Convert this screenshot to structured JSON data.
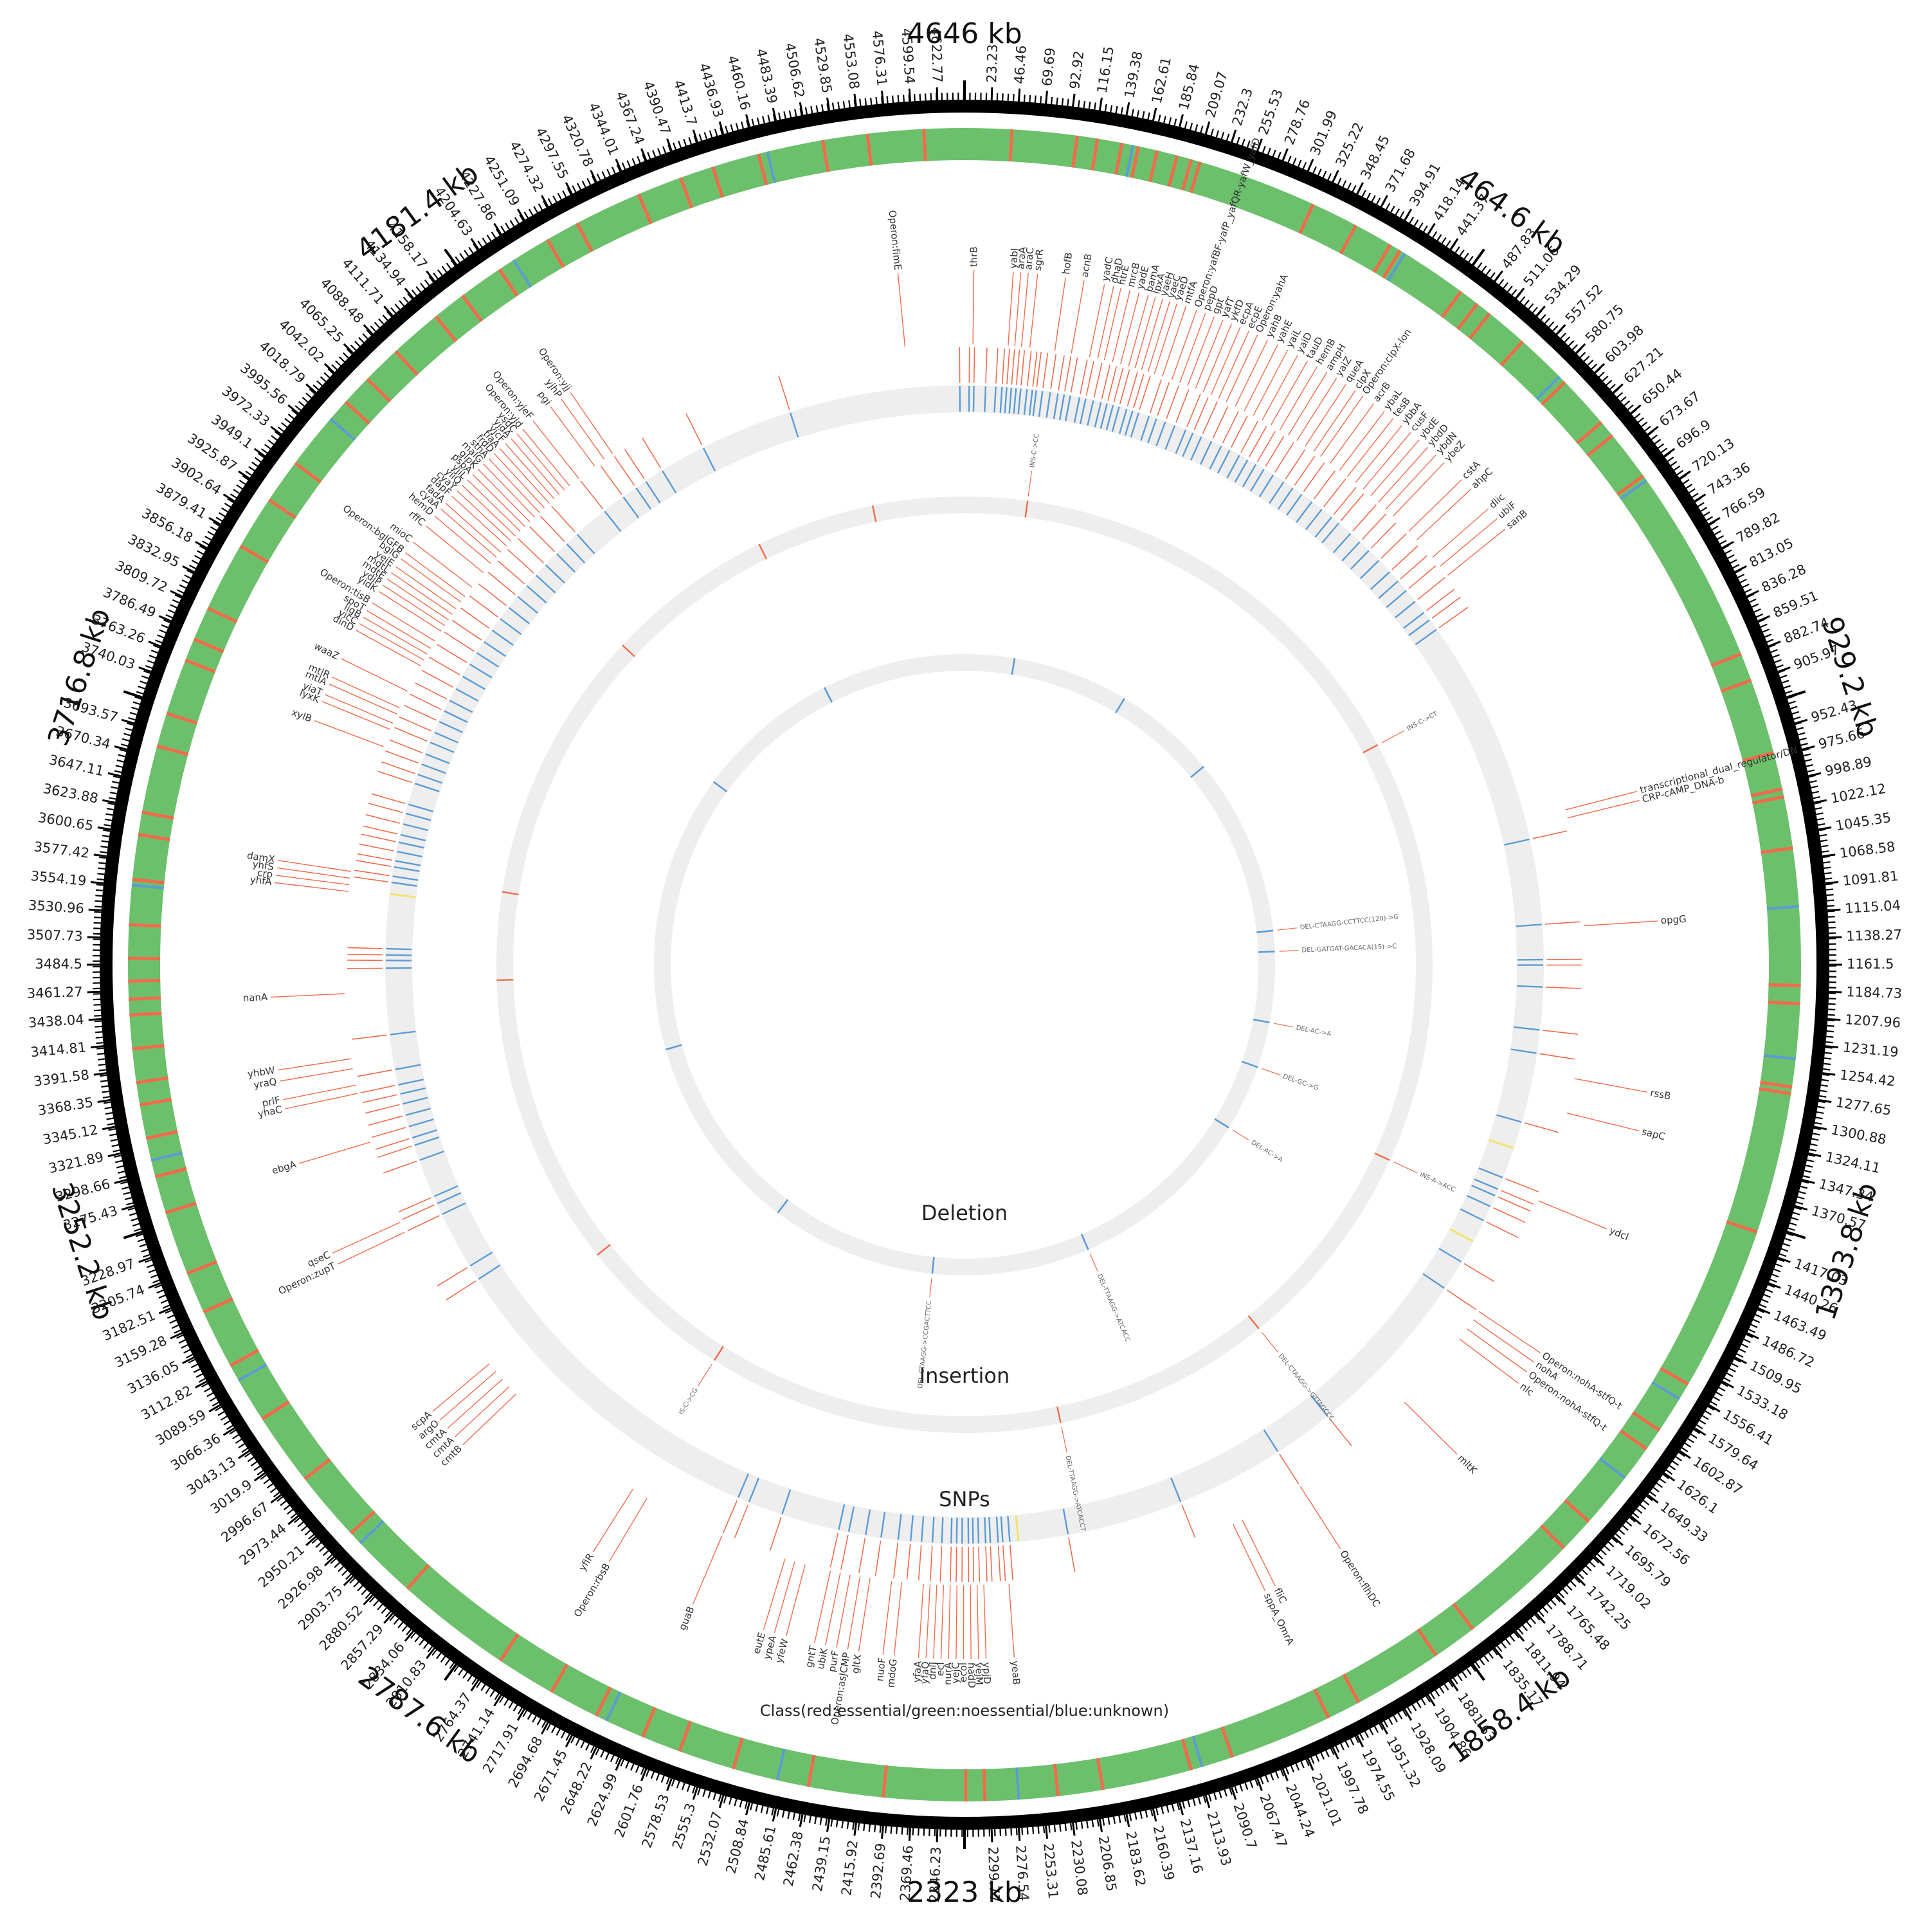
{
  "genome": {
    "length_kb": 4646
  },
  "colors": {
    "essential": "#f26b4a",
    "nonessential": "#6cc06c",
    "unknown": "#5b9bd5",
    "track_bg": "#eeeeee",
    "ruler": "#000000",
    "snp_tick": "#8fb3d6",
    "frameshift": "#f2e46b",
    "annotation_line": "#f26b4a",
    "text": "#333333"
  },
  "major_ticks": [
    "4646 kb",
    "464.6 kb",
    "929.2 kb",
    "1393.8 kb",
    "1858.4 kb",
    "2323 kb",
    "2787.6 kb",
    "3252.2 kb",
    "3716.8 kb",
    "4181.4 kb"
  ],
  "minor_ticks": [
    "23.23",
    "46.46",
    "69.69",
    "92.92",
    "116.15",
    "139.38",
    "162.61",
    "185.84",
    "209.07",
    "232.3",
    "255.53",
    "278.76",
    "301.99",
    "325.22",
    "348.45",
    "371.68",
    "394.91",
    "418.14",
    "441.37",
    "487.83",
    "511.06",
    "534.29",
    "557.52",
    "580.75",
    "603.98",
    "627.21",
    "650.44",
    "673.67",
    "696.9",
    "720.13",
    "743.36",
    "766.59",
    "789.82",
    "813.05",
    "836.28",
    "859.51",
    "882.74",
    "905.97",
    "952.43",
    "975.66",
    "998.89",
    "1022.12",
    "1045.35",
    "1068.58",
    "1091.81",
    "1115.04",
    "1138.27",
    "1161.5",
    "1184.73",
    "1207.96",
    "1231.19",
    "1254.42",
    "1277.65",
    "1300.88",
    "1324.11",
    "1347.34",
    "1370.57",
    "1417.03",
    "1440.26",
    "1463.49",
    "1486.72",
    "1509.95",
    "1533.18",
    "1556.41",
    "1579.64",
    "1602.87",
    "1626.1",
    "1649.33",
    "1672.56",
    "1695.79",
    "1719.02",
    "1742.25",
    "1765.48",
    "1788.71",
    "1811.94",
    "1835.17",
    "1881.63",
    "1904.86",
    "1928.09",
    "1951.32",
    "1974.55",
    "1997.78",
    "2021.01",
    "2044.24",
    "2067.47",
    "2090.7",
    "2113.93",
    "2137.16",
    "2160.39",
    "2183.62",
    "2206.85",
    "2230.08",
    "2253.31",
    "2276.54",
    "2299.77",
    "2346.23",
    "2369.46",
    "2392.69",
    "2415.92",
    "2439.15",
    "2462.38",
    "2485.61",
    "2508.84",
    "2532.07",
    "2555.3",
    "2578.53",
    "2601.76",
    "2624.99",
    "2648.22",
    "2671.45",
    "2694.68",
    "2717.91",
    "2741.14",
    "2764.37",
    "2810.83",
    "2834.06",
    "2857.29",
    "2880.52",
    "2903.75",
    "2926.98",
    "2950.21",
    "2973.44",
    "2996.67",
    "3019.9",
    "3043.13",
    "3066.36",
    "3089.59",
    "3112.82",
    "3136.05",
    "3159.28",
    "3182.51",
    "3205.74",
    "3228.97",
    "3275.43",
    "3298.66",
    "3321.89",
    "3345.12",
    "3368.35",
    "3391.58",
    "3414.81",
    "3438.04",
    "3461.27",
    "3484.5",
    "3507.73",
    "3530.96",
    "3554.19",
    "3577.42",
    "3600.65",
    "3623.88",
    "3647.11",
    "3670.34",
    "3693.57",
    "3740.03",
    "3763.26",
    "3786.49",
    "3809.72",
    "3832.95",
    "3856.18",
    "3879.41",
    "3902.64",
    "3925.87",
    "3949.1",
    "3972.33",
    "3995.56",
    "4018.79",
    "4042.02",
    "4065.25",
    "4088.48",
    "4111.71",
    "4134.94",
    "4158.17",
    "4204.63",
    "4227.86",
    "4251.09",
    "4274.32",
    "4297.55",
    "4320.78",
    "4344.01",
    "4367.24",
    "4390.47",
    "4413.7",
    "4436.93",
    "4460.16",
    "4483.39",
    "4506.62",
    "4529.85",
    "4553.08",
    "4576.31",
    "4599.54",
    "4622.77"
  ],
  "class_ring": {
    "label": "Class(red:essential/green:noessential/blue:unknown)",
    "essential_kb": [
      42,
      100,
      118,
      140,
      155,
      172,
      190,
      203,
      211,
      318,
      360,
      395,
      405,
      470,
      488,
      502,
      540,
      592,
      640,
      655,
      700,
      880,
      905,
      972,
      1005,
      1012,
      1058,
      1180,
      1196,
      1270,
      1276,
      1402,
      1550,
      1598,
      1618,
      1700,
      1732,
      1840,
      1880,
      1960,
      1990,
      2082,
      2120,
      2200,
      2240,
      2305,
      2322,
      2395,
      2462,
      2530,
      2580,
      2615,
      2660,
      2705,
      2758,
      2862,
      2932,
      2995,
      3060,
      3115,
      3168,
      3205,
      3262,
      3295,
      3330,
      3360,
      3380,
      3410,
      3440,
      3454,
      3470,
      3490,
      3520,
      3560,
      3600,
      3620,
      3680,
      3710,
      3760,
      3780,
      3810,
      3872,
      3920,
      3960,
      4030,
      4058,
      4093,
      4140,
      4170,
      4210,
      4260,
      4290,
      4350,
      4390,
      4420,
      4462,
      4520,
      4560,
      4610
    ],
    "unknown_kb": [
      150,
      410,
      585,
      705,
      1110,
      1245,
      1565,
      1650,
      2110,
      2275,
      2490,
      2650,
      2920,
      3100,
      3310,
      3555,
      4010,
      4225,
      4470
    ]
  },
  "snp_ring": {
    "label": "SNPs",
    "markers_kb": [
      6,
      12,
      27,
      40,
      48,
      54,
      60,
      66,
      72,
      80,
      87,
      92,
      100,
      110,
      120,
      128,
      136,
      148,
      156,
      166,
      176,
      184,
      192,
      200,
      210,
      218,
      226,
      240,
      250,
      262,
      275,
      290,
      300,
      312,
      326,
      340,
      352,
      366,
      378,
      390,
      402,
      416,
      432,
      446,
      460,
      476,
      492,
      508,
      520,
      540,
      556,
      572,
      590,
      610,
      626,
      642,
      660,
      678,
      690,
      705,
      1000,
      1110,
      1155,
      1162,
      1190,
      1245,
      1275,
      1365,
      1440,
      1456,
      1465,
      1480,
      1500,
      1560,
      1600,
      1822,
      1900,
      2040,
      2190,
      2265,
      2274,
      2280,
      2290,
      2296,
      2305,
      2312,
      2318,
      2326,
      2333,
      2340,
      2352,
      2364,
      2378,
      2392,
      2408,
      2430,
      2450,
      2472,
      2485,
      2560,
      2605,
      2620,
      3060,
      3080,
      3155,
      3170,
      3180,
      3230,
      3250,
      3260,
      3275,
      3290,
      3305,
      3318,
      3330,
      3350,
      3395,
      3480,
      3490,
      3497,
      3505,
      3590,
      3598,
      3610,
      3618,
      3630,
      3642,
      3652,
      3666,
      3680,
      3692,
      3720,
      3732,
      3746,
      3760,
      3776,
      3790,
      3805,
      3820,
      3835,
      3852,
      3870,
      3888,
      3905,
      3922,
      3940,
      3958,
      3976,
      3994,
      4012,
      4030,
      4048,
      4068,
      4086,
      4104,
      4150,
      4180,
      4200,
      4215,
      4240,
      4300,
      4420,
      4640
    ],
    "frameshift_kb": [
      1400,
      1530,
      3575,
      2254
    ]
  },
  "insertion_ring": {
    "label": "Insertion",
    "markers_kb": [
      100,
      800,
      1480,
      1820,
      2170,
      2740,
      2990,
      3460,
      3600,
      4040,
      4310,
      4500
    ],
    "annotations": [
      "INS-C->CC",
      "INS-C->CT",
      "INS-A->ACC",
      "DEL-CTAAGG->GTTAGCCC",
      "DEL-TTAAGG->ATCACCT",
      "IS-C->CG"
    ]
  },
  "deletion_ring": {
    "label": "Deletion",
    "markers_kb": [
      120,
      400,
      650,
      1080,
      1130,
      1300,
      1410,
      1570,
      2020,
      2400,
      2800,
      3280,
      3950,
      4300
    ],
    "annotations": [
      "DEL-CTAAGG-CCTTCC(120)->G",
      "DEL-GATGAT-GACACA(15)->C",
      "DEL-AC->A",
      "DEL-GC->G",
      "DEL-AC->A",
      "DEL-TTAAGG->ATCACC",
      "DEL-CTAAGG->CCGACTTCC"
    ]
  },
  "gene_labels": [
    {
      "kb": 10,
      "text": "thrB"
    },
    {
      "kb": 52,
      "text": "yabI"
    },
    {
      "kb": 60,
      "text": "araA"
    },
    {
      "kb": 68,
      "text": "araC"
    },
    {
      "kb": 78,
      "text": "sgrR"
    },
    {
      "kb": 108,
      "text": "hofB"
    },
    {
      "kb": 128,
      "text": "acnB"
    },
    {
      "kb": 150,
      "text": "yadC"
    },
    {
      "kb": 160,
      "text": "dhaD"
    },
    {
      "kb": 168,
      "text": "htrE"
    },
    {
      "kb": 178,
      "text": "mrcB"
    },
    {
      "kb": 188,
      "text": "yadE"
    },
    {
      "kb": 198,
      "text": "bamA"
    },
    {
      "kb": 206,
      "text": "lpxA"
    },
    {
      "kb": 214,
      "text": "yaeH"
    },
    {
      "kb": 222,
      "text": "yaeC"
    },
    {
      "kb": 230,
      "text": "yaeD"
    },
    {
      "kb": 240,
      "text": "mtfA"
    },
    {
      "kb": 252,
      "text": "Operon:yafBF-yafP_yafQR-yafW_yafD"
    },
    {
      "kb": 262,
      "text": "pepD"
    },
    {
      "kb": 272,
      "text": "gpt"
    },
    {
      "kb": 282,
      "text": "yafT"
    },
    {
      "kb": 292,
      "text": "ykfD"
    },
    {
      "kb": 302,
      "text": "ecpA"
    },
    {
      "kb": 312,
      "text": "ecpE"
    },
    {
      "kb": 322,
      "text": "Operon:yahA"
    },
    {
      "kb": 334,
      "text": "yahB"
    },
    {
      "kb": 346,
      "text": "yahE"
    },
    {
      "kb": 358,
      "text": "yaiL"
    },
    {
      "kb": 370,
      "text": "yaiD"
    },
    {
      "kb": 382,
      "text": "tauD"
    },
    {
      "kb": 394,
      "text": "hemB"
    },
    {
      "kb": 406,
      "text": "ampH"
    },
    {
      "kb": 418,
      "text": "yaiZ"
    },
    {
      "kb": 430,
      "text": "queA"
    },
    {
      "kb": 442,
      "text": "clpX"
    },
    {
      "kb": 452,
      "text": "Operon:clpX-lon"
    },
    {
      "kb": 466,
      "text": "acrB"
    },
    {
      "kb": 480,
      "text": "ybaL"
    },
    {
      "kb": 492,
      "text": "tesB"
    },
    {
      "kb": 504,
      "text": "ybbA"
    },
    {
      "kb": 516,
      "text": "cusF"
    },
    {
      "kb": 528,
      "text": "ybdE"
    },
    {
      "kb": 540,
      "text": "ybdD"
    },
    {
      "kb": 552,
      "text": "ybdN"
    },
    {
      "kb": 564,
      "text": "ybeZ"
    },
    {
      "kb": 590,
      "text": "cstA"
    },
    {
      "kb": 604,
      "text": "ahpC"
    },
    {
      "kb": 632,
      "text": "dlic"
    },
    {
      "kb": 646,
      "text": "ubiF"
    },
    {
      "kb": 660,
      "text": "sanB"
    },
    {
      "kb": 985,
      "text": "CRP-cAMP_DNA-b"
    },
    {
      "kb": 975,
      "text": "transcriptional_dual_regulator/DN"
    },
    {
      "kb": 1115,
      "text": "opgG"
    },
    {
      "kb": 1298,
      "text": "rssB"
    },
    {
      "kb": 1340,
      "text": "sapC"
    },
    {
      "kb": 1450,
      "text": "ydcI"
    },
    {
      "kb": 1600,
      "text": "Operon:nohA-stfQ-t"
    },
    {
      "kb": 1612,
      "text": "nohA"
    },
    {
      "kb": 1625,
      "text": "Operon:nohA-stfQ-t"
    },
    {
      "kb": 1640,
      "text": "nlc"
    },
    {
      "kb": 1740,
      "text": "mltK"
    },
    {
      "kb": 1900,
      "text": "Operon:flhDC"
    },
    {
      "kb": 1980,
      "text": "fliC"
    },
    {
      "kb": 1992,
      "text": "sppA_OmrA"
    },
    {
      "kb": 2270,
      "text": "yeaB"
    },
    {
      "kb": 2300,
      "text": "ypjD"
    },
    {
      "kb": 2308,
      "text": "yejM"
    },
    {
      "kb": 2316,
      "text": "nadD"
    },
    {
      "kb": 2324,
      "text": "ecol"
    },
    {
      "kb": 2332,
      "text": "yejC"
    },
    {
      "kb": 2340,
      "text": "nurA"
    },
    {
      "kb": 2348,
      "text": "ecl"
    },
    {
      "kb": 2356,
      "text": "dnlJ"
    },
    {
      "kb": 2364,
      "text": "yfaQ"
    },
    {
      "kb": 2372,
      "text": "yfaA"
    },
    {
      "kb": 2398,
      "text": "mdoG"
    },
    {
      "kb": 2410,
      "text": "nuoF"
    },
    {
      "kb": 2436,
      "text": "gltX"
    },
    {
      "kb": 2448,
      "text": "Operon:asJCMP"
    },
    {
      "kb": 2460,
      "text": "purF"
    },
    {
      "kb": 2472,
      "text": "ubiK"
    },
    {
      "kb": 2484,
      "text": "gntT"
    },
    {
      "kb": 2515,
      "text": "yfeW"
    },
    {
      "kb": 2528,
      "text": "ypeA"
    },
    {
      "kb": 2540,
      "text": "eutE"
    },
    {
      "kb": 2620,
      "text": "guaB"
    },
    {
      "kb": 2720,
      "text": "Operon:rbsB"
    },
    {
      "kb": 2740,
      "text": "yfiR"
    },
    {
      "kb": 2920,
      "text": "cmtB"
    },
    {
      "kb": 2932,
      "text": "cmtA"
    },
    {
      "kb": 2944,
      "text": "cmtA"
    },
    {
      "kb": 2956,
      "text": "argO"
    },
    {
      "kb": 2968,
      "text": "scpA"
    },
    {
      "kb": 3155,
      "text": "Operon:zupT"
    },
    {
      "kb": 3168,
      "text": "qseC"
    },
    {
      "kb": 3270,
      "text": "ebgA"
    },
    {
      "kb": 3330,
      "text": "yhaC"
    },
    {
      "kb": 3340,
      "text": "prlF"
    },
    {
      "kb": 3360,
      "text": "yraQ"
    },
    {
      "kb": 3372,
      "text": "yhbW"
    },
    {
      "kb": 3450,
      "text": "nanA"
    },
    {
      "kb": 3572,
      "text": "yhfA"
    },
    {
      "kb": 3580,
      "text": "crp"
    },
    {
      "kb": 3588,
      "text": "yhfS"
    },
    {
      "kb": 3596,
      "text": "damX"
    },
    {
      "kb": 3750,
      "text": "xylB"
    },
    {
      "kb": 3772,
      "text": "lyxK"
    },
    {
      "kb": 3780,
      "text": "yiaT"
    },
    {
      "kb": 3792,
      "text": "mtlA"
    },
    {
      "kb": 3800,
      "text": "mtlR"
    },
    {
      "kb": 3822,
      "text": "waaZ"
    },
    {
      "kb": 3856,
      "text": "dinD"
    },
    {
      "kb": 3864,
      "text": "yicC"
    },
    {
      "kb": 3872,
      "text": "ligB"
    },
    {
      "kb": 3880,
      "text": "spoT"
    },
    {
      "kb": 3890,
      "text": "Operon:tisB"
    },
    {
      "kb": 3904,
      "text": "yidK"
    },
    {
      "kb": 3912,
      "text": "ydiP"
    },
    {
      "kb": 3920,
      "text": "mdtE"
    },
    {
      "kb": 3928,
      "text": "mdtL"
    },
    {
      "kb": 3936,
      "text": "yeiE"
    },
    {
      "kb": 3946,
      "text": "bglG"
    },
    {
      "kb": 3954,
      "text": "Operon:bglGFB"
    },
    {
      "kb": 3968,
      "text": "mioC"
    },
    {
      "kb": 3990,
      "text": "rffC"
    },
    {
      "kb": 4004,
      "text": "hemD"
    },
    {
      "kb": 4014,
      "text": "cyaA"
    },
    {
      "kb": 4022,
      "text": "fadA"
    },
    {
      "kb": 4032,
      "text": "dapF"
    },
    {
      "kb": 4040,
      "text": "cyaY"
    },
    {
      "kb": 4048,
      "text": "yiiQ"
    },
    {
      "kb": 4056,
      "text": "yjiL"
    },
    {
      "kb": 4064,
      "text": "pspA"
    },
    {
      "kb": 4072,
      "text": "glpK"
    },
    {
      "kb": 4080,
      "text": "malG"
    },
    {
      "kb": 4088,
      "text": "sthA"
    },
    {
      "kb": 4096,
      "text": "frdD"
    },
    {
      "kb": 4104,
      "text": "tiaA"
    },
    {
      "kb": 4112,
      "text": "yjcF"
    },
    {
      "kb": 4120,
      "text": "yjdA"
    },
    {
      "kb": 4128,
      "text": "ysdC"
    },
    {
      "kb": 4136,
      "text": "Operon:yjd"
    },
    {
      "kb": 4150,
      "text": "Operon:yjeF"
    },
    {
      "kb": 4174,
      "text": "pgi"
    },
    {
      "kb": 4188,
      "text": "yjhP"
    },
    {
      "kb": 4200,
      "text": "Operon:yjj"
    },
    {
      "kb": 4575,
      "text": "Operon:fimE"
    }
  ]
}
